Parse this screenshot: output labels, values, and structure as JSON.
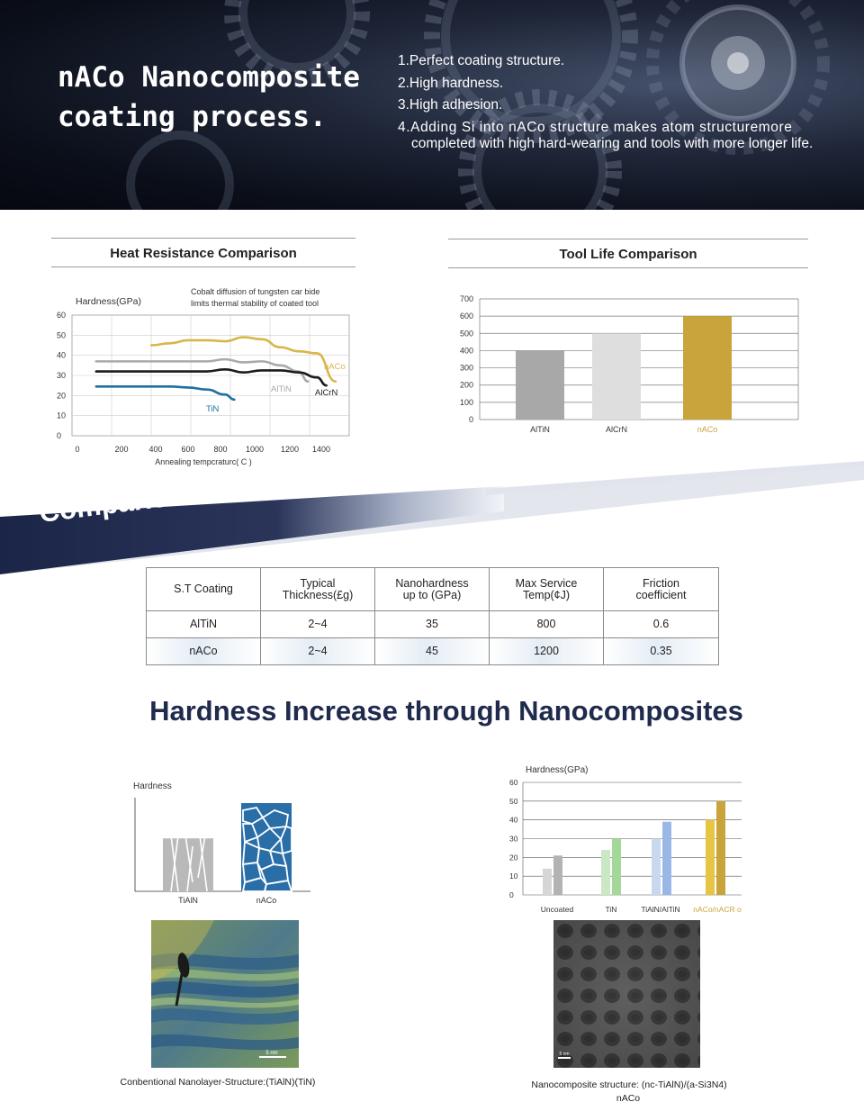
{
  "header": {
    "title_line1": "nACo Nanocomposite",
    "title_line2": "coating process.",
    "points": [
      "1.Perfect coating structure.",
      "2.High hardness.",
      "3.High adhesion.",
      "4.Adding Si into nACo structure makes atom structuremore",
      "completed with high hard-wearing and tools with more longer life."
    ]
  },
  "heat_chart": {
    "panel_title": "Heat Resistance Comparison",
    "ylabel": "Hardness(GPa)",
    "xlabel": "Annealing tempcraturc( C )",
    "note_line1": "Cobalt diffusion of tungsten car bide",
    "note_line2": "limits thermal stability of coated tool",
    "y_ticks": [
      "60",
      "50",
      "40",
      "30",
      "20",
      "10",
      "0"
    ],
    "x_ticks": [
      "0",
      "200",
      "400",
      "600",
      "800",
      "1000",
      "1200",
      "1400"
    ],
    "colors": {
      "nACo": "#d8b64a",
      "AlTiN": "#a9a9a9",
      "AlCrN": "#1b1b1b",
      "TiN": "#1d6fa3"
    }
  },
  "chart_data": [
    {
      "type": "line",
      "title": "Heat Resistance Comparison",
      "xlabel": "Annealing tempcraturc( C )",
      "ylabel": "Hardness(GPa)",
      "xlim": [
        0,
        1400
      ],
      "ylim": [
        0,
        60
      ],
      "grid": true,
      "series": [
        {
          "name": "nACo",
          "x": [
            400,
            500,
            600,
            700,
            800,
            900,
            1000,
            1100,
            1200,
            1300,
            1400
          ],
          "y": [
            45,
            46,
            47.5,
            47.5,
            47,
            49,
            48,
            44,
            42,
            41,
            27
          ]
        },
        {
          "name": "AlTiN",
          "x": [
            100,
            300,
            500,
            700,
            800,
            900,
            1000,
            1100,
            1200,
            1250
          ],
          "y": [
            37,
            37,
            37,
            37,
            38,
            36.5,
            37,
            35,
            32,
            27
          ]
        },
        {
          "name": "AlCrN",
          "x": [
            100,
            300,
            500,
            700,
            800,
            900,
            1000,
            1100,
            1200,
            1300,
            1350
          ],
          "y": [
            32,
            32,
            32,
            32,
            33,
            31.5,
            32.5,
            32.5,
            31.5,
            29,
            25
          ]
        },
        {
          "name": "TiN",
          "x": [
            100,
            300,
            500,
            600,
            700,
            800,
            850
          ],
          "y": [
            24.5,
            24.5,
            24.5,
            24,
            23,
            20.5,
            18
          ]
        }
      ]
    },
    {
      "type": "bar",
      "title": "Tool Life Comparison",
      "categories": [
        "AlTiN",
        "AlCrN",
        "nACo"
      ],
      "values": [
        400,
        500,
        600
      ],
      "ylim": [
        0,
        700
      ],
      "grid": true
    },
    {
      "type": "bar",
      "title": "",
      "ylabel": "Hardness",
      "categories": [
        "TiAlN",
        "nACo"
      ],
      "values": [
        3,
        5
      ],
      "grid": false
    },
    {
      "type": "bar",
      "title": "",
      "ylabel": "Hardness(GPa)",
      "categories": [
        "Uncoated",
        "TiN",
        "TiAlN/AlTiN",
        "nACo/nACR o"
      ],
      "series": [
        {
          "values": [
            14,
            24,
            30,
            40
          ]
        },
        {
          "values": [
            21,
            30,
            39,
            50
          ]
        }
      ],
      "ylim": [
        0,
        60
      ],
      "grid": true
    }
  ],
  "tool_chart": {
    "panel_title": "Tool Life Comparison",
    "y_ticks": [
      "700",
      "600",
      "500",
      "400",
      "300",
      "200",
      "100",
      "0"
    ],
    "colors": {
      "AlTiN": "#a8a8a8",
      "AlCrN": "#dedede",
      "nACo": "#c9a43a"
    }
  },
  "banner": {
    "text": "Comparision of AlTiN v.s nACo",
    "color_dark": "#1b2547"
  },
  "table": {
    "headers": [
      [
        "S.T Coating"
      ],
      [
        "Typical",
        "Thickness(£g)"
      ],
      [
        "Nanohardness",
        "up to (GPa)"
      ],
      [
        "Max Service",
        "Temp(¢J)"
      ],
      [
        "Friction",
        "coefficient"
      ]
    ],
    "rows": [
      [
        "AlTiN",
        "2~4",
        "35",
        "800",
        "0.6"
      ],
      [
        "nACo",
        "2~4",
        "45",
        "1200",
        "0.35"
      ]
    ]
  },
  "section_heading": "Hardness Increase through Nanocomposites",
  "bottom_left": {
    "ylabel": "Hardness",
    "labels": [
      "TiAlN",
      "nACo"
    ],
    "colors": {
      "TiAlN": "#b9b9b9",
      "nACo": "#2a6ea8"
    },
    "caption": "Conbentional Nanolayer-Structure:(TiAlN)(TiN)",
    "scale": "5 nm"
  },
  "bottom_right": {
    "ylabel": "Hardness(GPa)",
    "y_ticks": [
      "60",
      "50",
      "40",
      "30",
      "20",
      "10",
      "0"
    ],
    "group_labels": [
      "Uncoated",
      "TiN",
      "TiAlN/AlTiN",
      "nACo/nACR o"
    ],
    "colors": {
      "Uncoated": [
        "#d6d6d6",
        "#b3b3b3"
      ],
      "TiN": [
        "#c9e8c3",
        "#a3d899"
      ],
      "TiAlN/AlTiN": [
        "#c8d8ee",
        "#9ab8e6"
      ],
      "nACo/nACR o": [
        "#e5c542",
        "#c9a43a"
      ]
    },
    "caption_line1": "Nanocomposite structure: (nc-TiAlN)/(a-Si3N4)",
    "caption_line2": "nACo",
    "scale": "5 nm"
  }
}
